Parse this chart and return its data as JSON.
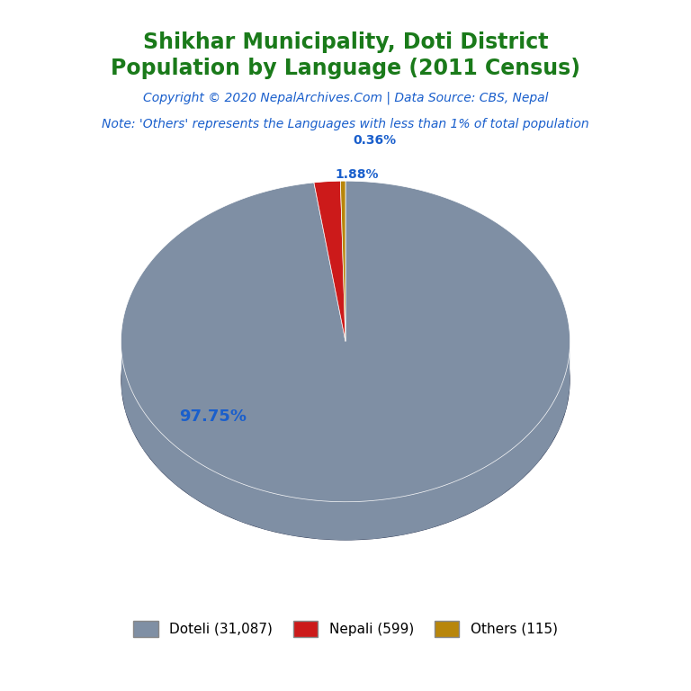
{
  "title_line1": "Shikhar Municipality, Doti District",
  "title_line2": "Population by Language (2011 Census)",
  "title_color": "#1a7a1a",
  "copyright_text": "Copyright © 2020 NepalArchives.Com | Data Source: CBS, Nepal",
  "copyright_color": "#1a5fcc",
  "note_text": "Note: 'Others' represents the Languages with less than 1% of total population",
  "note_color": "#1a5fcc",
  "labels": [
    "Doteli",
    "Nepali",
    "Others"
  ],
  "values": [
    31087,
    599,
    115
  ],
  "percentages": [
    "97.75",
    "1.88",
    "0.36"
  ],
  "colors": [
    "#7f8fa4",
    "#cc1a1a",
    "#b8860b"
  ],
  "shadow_color": "#1a2340",
  "legend_labels": [
    "Doteli (31,087)",
    "Nepali (599)",
    "Others (115)"
  ],
  "pct_label_color": "#1a5fcc",
  "background_color": "#ffffff",
  "title_fontsize": 17,
  "copyright_fontsize": 10,
  "note_fontsize": 10
}
